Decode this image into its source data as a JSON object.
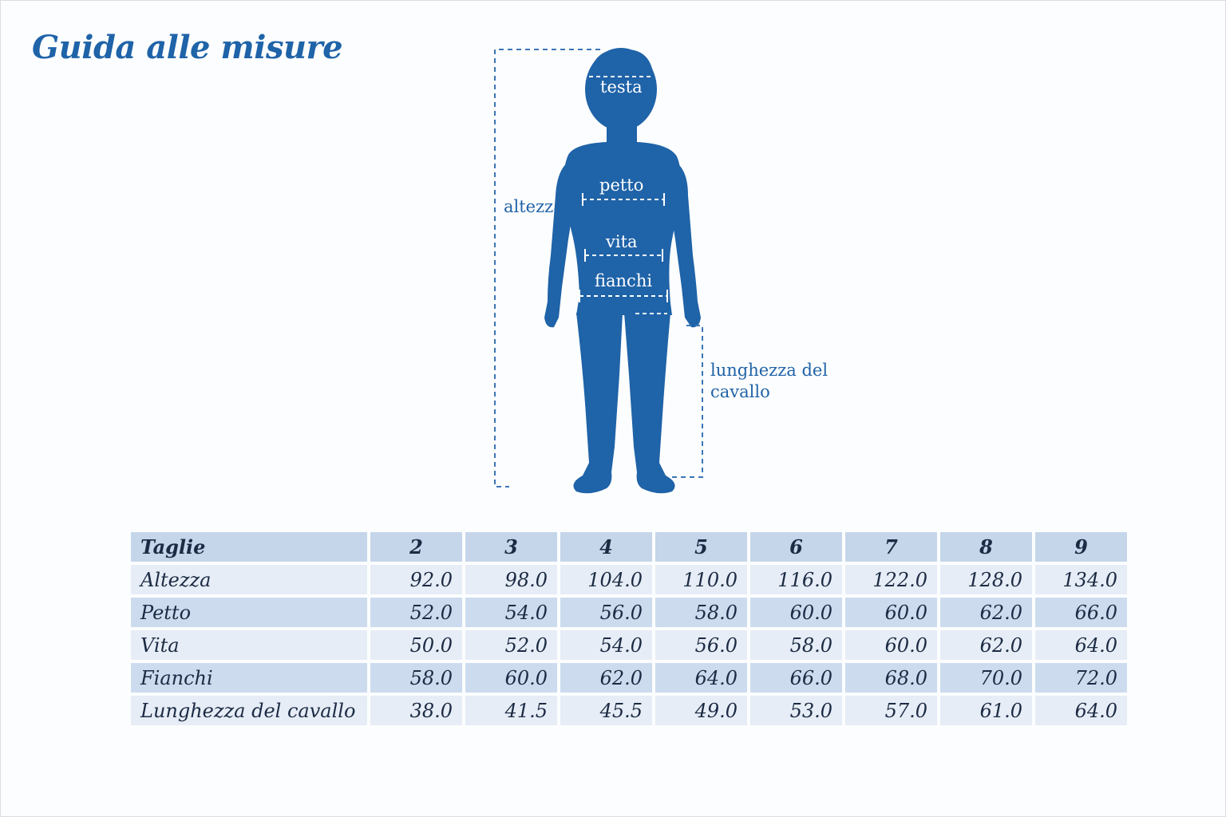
{
  "title": "Guida alle misure",
  "figure": {
    "labels": {
      "head": "testa",
      "chest": "petto",
      "waist": "vita",
      "hips": "fianchi",
      "height": "altezza",
      "inseam": "lunghezza del cavallo"
    },
    "colors": {
      "silhouette": "#1f63a8",
      "dash": "#3a76b5"
    }
  },
  "table": {
    "header_label": "Taglie",
    "sizes": [
      "2",
      "3",
      "4",
      "5",
      "6",
      "7",
      "8",
      "9"
    ],
    "rows": [
      {
        "label": "Altezza",
        "values": [
          "92.0",
          "98.0",
          "104.0",
          "110.0",
          "116.0",
          "122.0",
          "128.0",
          "134.0"
        ]
      },
      {
        "label": "Petto",
        "values": [
          "52.0",
          "54.0",
          "56.0",
          "58.0",
          "60.0",
          "60.0",
          "62.0",
          "66.0"
        ]
      },
      {
        "label": "Vita",
        "values": [
          "50.0",
          "52.0",
          "54.0",
          "56.0",
          "58.0",
          "60.0",
          "62.0",
          "64.0"
        ]
      },
      {
        "label": "Fianchi",
        "values": [
          "58.0",
          "60.0",
          "62.0",
          "64.0",
          "66.0",
          "68.0",
          "70.0",
          "72.0"
        ]
      },
      {
        "label": "Lunghezza del cavallo",
        "values": [
          "38.0",
          "41.5",
          "45.5",
          "49.0",
          "53.0",
          "57.0",
          "61.0",
          "64.0"
        ]
      }
    ]
  }
}
